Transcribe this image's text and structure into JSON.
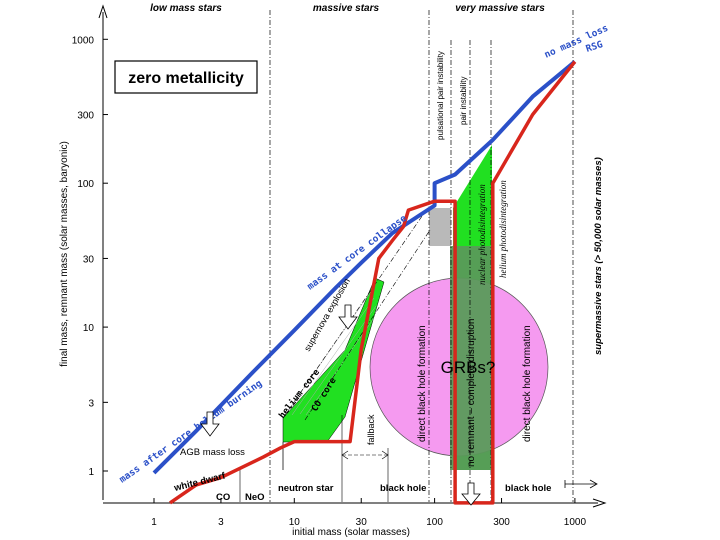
{
  "chart_data": {
    "type": "line",
    "title": "zero metallicity",
    "xlabel": "initial mass (solar masses)",
    "ylabel": "final mass, remnant mass (solar masses, baryonic)",
    "x_scale": "log",
    "y_scale": "log",
    "xlim": [
      0.6,
      1700
    ],
    "ylim": [
      0.6,
      2000
    ],
    "x_ticks": [
      1,
      3,
      10,
      30,
      100,
      300,
      1000
    ],
    "x_tick_labels": [
      "1",
      "3",
      "10",
      "30",
      "100",
      "300",
      "1000"
    ],
    "y_ticks": [
      1,
      3,
      10,
      30,
      100,
      300,
      1000
    ],
    "y_tick_labels": [
      "1",
      "3",
      "10",
      "30",
      "100",
      "300",
      "1000"
    ],
    "series": [
      {
        "name": "final mass",
        "color": "#2b50c8",
        "x": [
          1,
          2,
          5,
          10,
          20,
          30,
          50,
          100,
          100,
          140,
          260,
          500,
          1000
        ],
        "y": [
          0.97,
          1.9,
          4.8,
          9.5,
          19,
          28,
          45,
          70,
          100,
          115,
          200,
          400,
          700
        ]
      },
      {
        "name": "remnant mass",
        "color": "#d8261c",
        "x": [
          1.3,
          2,
          3,
          6,
          8,
          10,
          25,
          30,
          40,
          50,
          60,
          65,
          100,
          140,
          140,
          260,
          260,
          500,
          1000
        ],
        "y": [
          0.6,
          0.8,
          0.9,
          1.25,
          1.45,
          1.6,
          1.6,
          7,
          30,
          40,
          50,
          65,
          75,
          75,
          0.6,
          0.6,
          100,
          300,
          700
        ]
      }
    ],
    "region_labels": {
      "low": "low mass stars",
      "massive": "massive stars",
      "very_massive": "very massive stars"
    },
    "annotations": {
      "no_mass_loss": "no mass loss",
      "rsg": "RSG",
      "mass_after_he": "mass after core helium burning",
      "mass_at_collapse": "mass at core collapse",
      "sn_explosion": "supernova explosion",
      "helium_core": "helium core",
      "co_core": "CO core",
      "pulsational": "pulsational pair instability",
      "pair_instability": "pair instability",
      "nuclear_photo": "nuclear photodisintegration",
      "helium_photo": "helium photodisintegration",
      "supermassive": "supermassive stars (> 50,000 solar masses)",
      "dbh_left": "direct black hole formation",
      "no_remnant": "no remnant – complete disruption",
      "dbh_right": "direct black hole formation",
      "grbs": "GRBs?",
      "fallback": "fallback",
      "agb": "AGB mass loss",
      "white_dwarf": "white dwarf",
      "co": "CO",
      "neo": "NeO",
      "neutron_star": "neutron star",
      "black_hole_1": "black hole",
      "black_hole_2": "black hole"
    },
    "grid": false,
    "legend": "none"
  },
  "colors": {
    "final_line": "#2b50c8",
    "remnant_line": "#d8261c",
    "green": "#21e021",
    "pink": "#f59af0",
    "dark_green": "#5a9a5a"
  }
}
